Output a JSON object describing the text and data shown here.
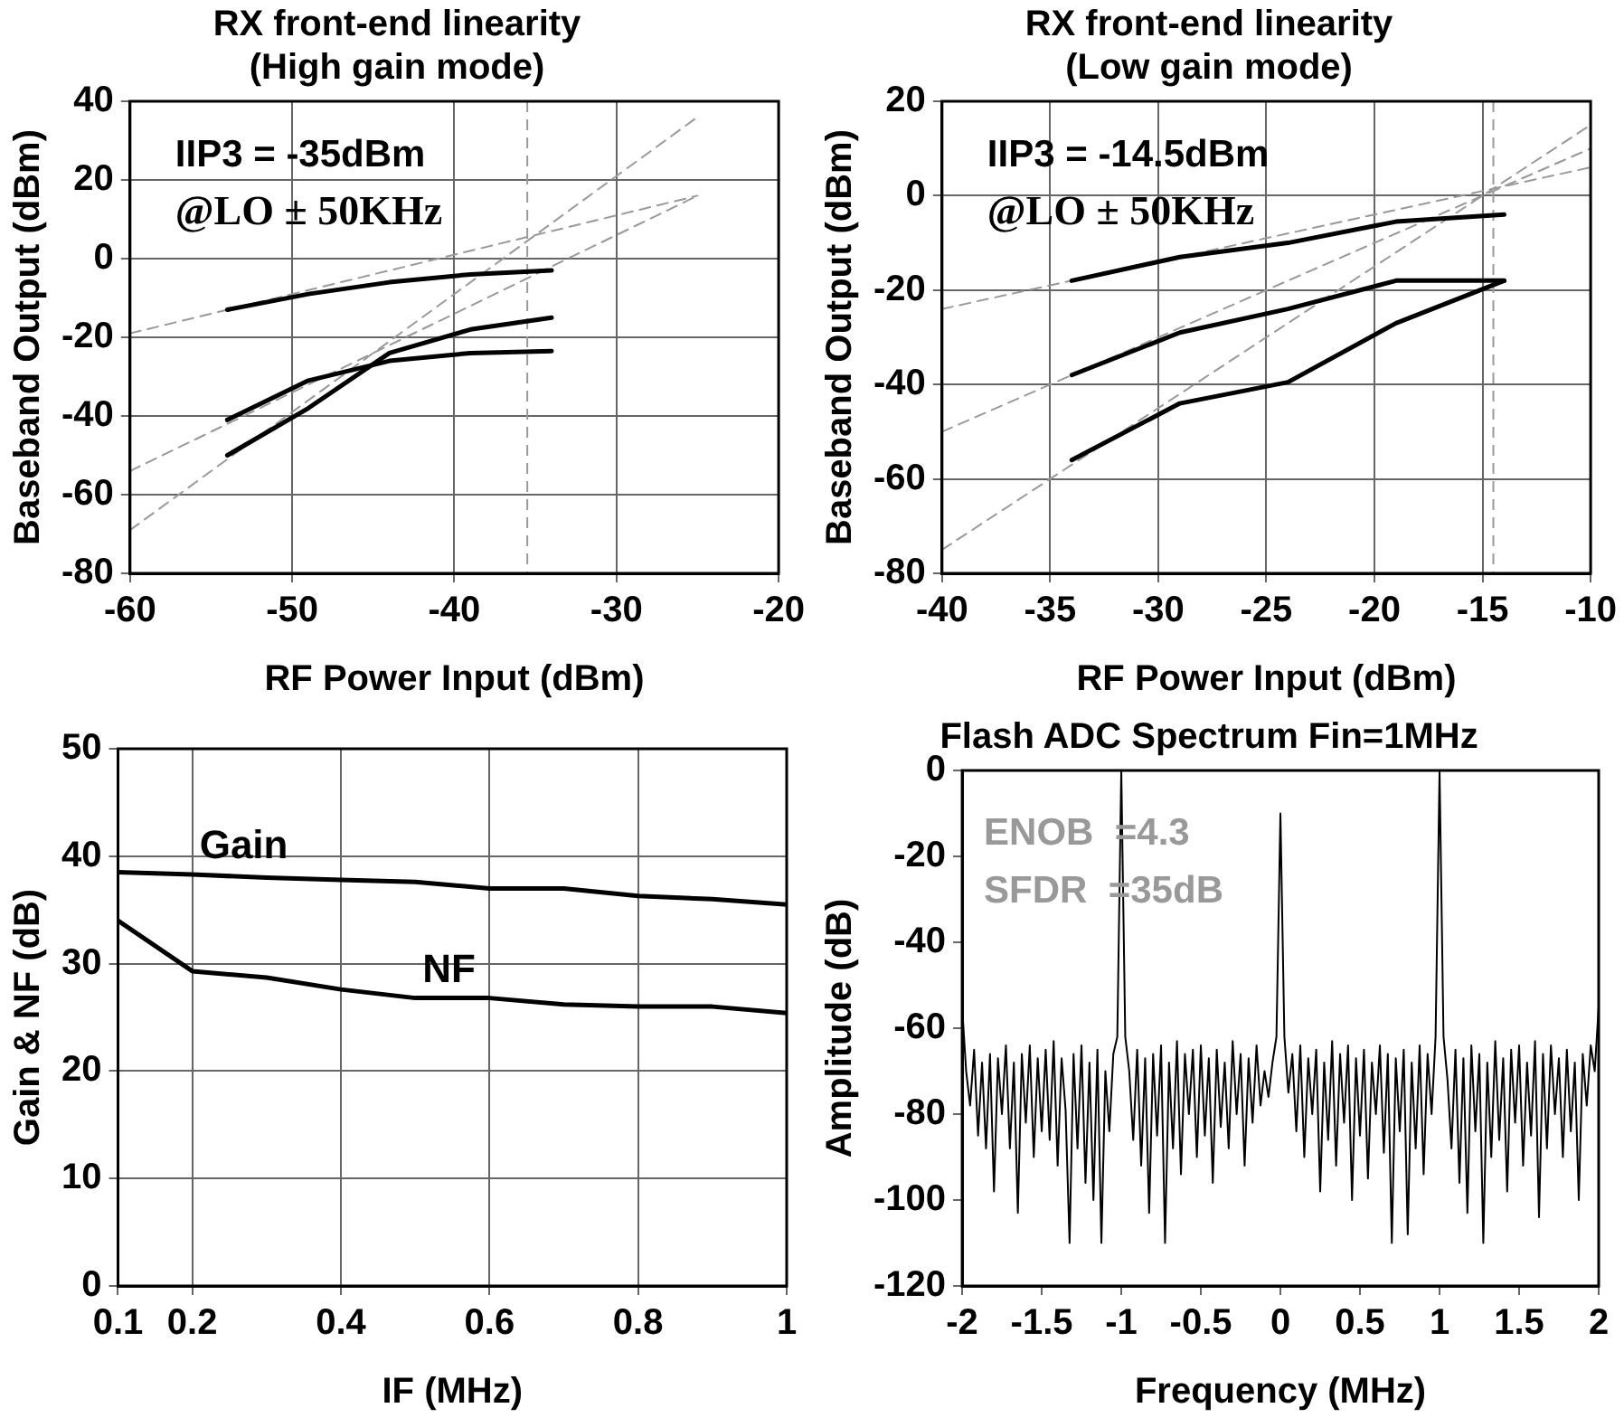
{
  "chart_data": [
    {
      "type": "line",
      "title": "RX front-end linearity\n(High gain mode)",
      "xlabel": "RF Power Input (dBm)",
      "ylabel": "Baseband Output (dBm)",
      "xlim": [
        -60,
        -20
      ],
      "xticks": [
        -60,
        -50,
        -40,
        -30,
        -20
      ],
      "ylim": [
        -80,
        40
      ],
      "yticks": [
        -80,
        -60,
        -40,
        -20,
        0,
        20,
        40
      ],
      "grid": true,
      "legend": false,
      "marker": "none",
      "annotations": [
        "IIP3 = -35dBm",
        "@LO ± 50KHz"
      ],
      "ref_lines": [
        {
          "axis": "x",
          "value": -35.5,
          "color": "#999999",
          "line_style": "dashed"
        }
      ],
      "series": [
        {
          "color": "#000000",
          "x": [
            -54,
            -49,
            -44,
            -39,
            -34
          ],
          "values": [
            -13,
            -9,
            -6,
            -4,
            -3
          ]
        },
        {
          "color": "#000000",
          "x": [
            -54,
            -49,
            -44,
            -39,
            -34
          ],
          "values": [
            -41,
            -31,
            -26,
            -24,
            -23.5
          ]
        },
        {
          "color": "#000000",
          "x": [
            -54,
            -49,
            -44,
            -39,
            -34
          ],
          "values": [
            -50,
            -38,
            -24,
            -18,
            -15
          ]
        },
        {
          "color": "#999999",
          "line_style": "dashed",
          "x": [
            -60,
            -25
          ],
          "values": [
            -19,
            16
          ]
        },
        {
          "color": "#999999",
          "line_style": "dashed",
          "x": [
            -60,
            -25
          ],
          "values": [
            -54,
            16
          ]
        },
        {
          "color": "#999999",
          "line_style": "dashed",
          "x": [
            -60,
            -25
          ],
          "values": [
            -69,
            36
          ]
        }
      ]
    },
    {
      "type": "line",
      "title": "RX front-end linearity\n(Low gain mode)",
      "xlabel": "RF Power Input (dBm)",
      "ylabel": "Baseband Output (dBm)",
      "xlim": [
        -40,
        -10
      ],
      "xticks": [
        -40,
        -35,
        -30,
        -25,
        -20,
        -15,
        -10
      ],
      "ylim": [
        -80,
        20
      ],
      "yticks": [
        -80,
        -60,
        -40,
        -20,
        0,
        20
      ],
      "grid": true,
      "legend": false,
      "marker": "none",
      "annotations": [
        "IIP3 = -14.5dBm",
        "@LO ± 50KHz"
      ],
      "ref_lines": [
        {
          "axis": "x",
          "value": -14.5,
          "color": "#999999",
          "line_style": "dashed"
        }
      ],
      "series": [
        {
          "color": "#000000",
          "x": [
            -34,
            -29,
            -24,
            -19,
            -14
          ],
          "values": [
            -18,
            -13,
            -10,
            -5.5,
            -4
          ]
        },
        {
          "color": "#000000",
          "x": [
            -34,
            -29,
            -24,
            -19,
            -14
          ],
          "values": [
            -38,
            -29,
            -24,
            -18,
            -18
          ]
        },
        {
          "color": "#000000",
          "x": [
            -34,
            -29,
            -24,
            -19,
            -14
          ],
          "values": [
            -56,
            -44,
            -39.5,
            -27,
            -18
          ]
        },
        {
          "color": "#999999",
          "line_style": "dashed",
          "x": [
            -40,
            -10
          ],
          "values": [
            -24,
            6
          ]
        },
        {
          "color": "#999999",
          "line_style": "dashed",
          "x": [
            -40,
            -10
          ],
          "values": [
            -50,
            10
          ]
        },
        {
          "color": "#999999",
          "line_style": "dashed",
          "x": [
            -40,
            -10
          ],
          "values": [
            -75,
            15
          ]
        }
      ]
    },
    {
      "type": "line",
      "xlabel": "IF (MHz)",
      "ylabel": "Gain & NF (dB)",
      "xlim": [
        0.1,
        1
      ],
      "xticks": [
        0.1,
        0.2,
        0.4,
        0.6,
        0.8,
        1
      ],
      "ylim": [
        0,
        50
      ],
      "yticks": [
        0,
        10,
        20,
        30,
        40,
        50
      ],
      "grid": true,
      "legend": false,
      "marker": "none",
      "x": [
        0.1,
        0.2,
        0.3,
        0.4,
        0.5,
        0.6,
        0.7,
        0.8,
        0.9,
        1
      ],
      "series": [
        {
          "name": "Gain",
          "color": "#000000",
          "values": [
            38.5,
            38.3,
            38,
            37.8,
            37.6,
            37,
            37,
            36.3,
            36,
            35.5
          ]
        },
        {
          "name": "NF",
          "color": "#000000",
          "values": [
            34,
            29.3,
            28.7,
            27.6,
            26.8,
            26.8,
            26.2,
            26,
            26,
            25.4
          ]
        }
      ]
    },
    {
      "type": "line",
      "title": "Flash ADC Spectrum Fin=1MHz",
      "xlabel": "Frequency (MHz)",
      "ylabel": "Amplitude (dB)",
      "xlim": [
        -2,
        2
      ],
      "xticks": [
        -2,
        -1.5,
        -1,
        -0.5,
        0,
        0.5,
        1,
        1.5,
        2
      ],
      "ylim": [
        -120,
        0
      ],
      "yticks": [
        -120,
        -100,
        -80,
        -60,
        -40,
        -20,
        0
      ],
      "grid": false,
      "legend": false,
      "marker": "none",
      "annotations": [
        "ENOB  =4.3",
        "SFDR  =35dB"
      ],
      "x": [
        -2,
        -1.975,
        -1.95,
        -1.925,
        -1.9,
        -1.875,
        -1.85,
        -1.825,
        -1.8,
        -1.775,
        -1.75,
        -1.725,
        -1.7,
        -1.675,
        -1.65,
        -1.625,
        -1.6,
        -1.575,
        -1.55,
        -1.525,
        -1.5,
        -1.475,
        -1.45,
        -1.425,
        -1.4,
        -1.375,
        -1.35,
        -1.325,
        -1.3,
        -1.275,
        -1.25,
        -1.225,
        -1.2,
        -1.175,
        -1.15,
        -1.125,
        -1.1,
        -1.075,
        -1.05,
        -1.025,
        -1,
        -0.975,
        -0.95,
        -0.925,
        -0.9,
        -0.875,
        -0.85,
        -0.825,
        -0.8,
        -0.775,
        -0.75,
        -0.725,
        -0.7,
        -0.675,
        -0.65,
        -0.625,
        -0.6,
        -0.575,
        -0.55,
        -0.525,
        -0.5,
        -0.475,
        -0.45,
        -0.425,
        -0.4,
        -0.375,
        -0.35,
        -0.325,
        -0.3,
        -0.275,
        -0.25,
        -0.225,
        -0.2,
        -0.175,
        -0.15,
        -0.125,
        -0.1,
        -0.075,
        -0.05,
        -0.025,
        0,
        0.025,
        0.05,
        0.075,
        0.1,
        0.125,
        0.15,
        0.175,
        0.2,
        0.225,
        0.25,
        0.275,
        0.3,
        0.325,
        0.35,
        0.375,
        0.4,
        0.425,
        0.45,
        0.475,
        0.5,
        0.525,
        0.55,
        0.575,
        0.6,
        0.625,
        0.65,
        0.675,
        0.7,
        0.725,
        0.75,
        0.775,
        0.8,
        0.825,
        0.85,
        0.875,
        0.9,
        0.925,
        0.95,
        0.975,
        1,
        1.025,
        1.05,
        1.075,
        1.1,
        1.125,
        1.15,
        1.175,
        1.2,
        1.225,
        1.25,
        1.275,
        1.3,
        1.325,
        1.35,
        1.375,
        1.4,
        1.425,
        1.45,
        1.475,
        1.5,
        1.525,
        1.55,
        1.575,
        1.6,
        1.625,
        1.65,
        1.675,
        1.7,
        1.725,
        1.75,
        1.775,
        1.8,
        1.825,
        1.85,
        1.875,
        1.9,
        1.925,
        1.95,
        1.975,
        2
      ],
      "series": [
        {
          "color": "#000000",
          "values": [
            -55,
            -70,
            -78,
            -65,
            -85,
            -68,
            -88,
            -66,
            -98,
            -67,
            -80,
            -64,
            -88,
            -68,
            -103,
            -66,
            -82,
            -64,
            -90,
            -67,
            -84,
            -65,
            -86,
            -63,
            -92,
            -67,
            -79,
            -110,
            -66,
            -88,
            -64,
            -96,
            -68,
            -100,
            -65,
            -110,
            -70,
            -84,
            -66,
            -62,
            0,
            -62,
            -70,
            -86,
            -65,
            -92,
            -67,
            -103,
            -66,
            -85,
            -64,
            -110,
            -68,
            -88,
            -63,
            -94,
            -66,
            -80,
            -65,
            -90,
            -64,
            -85,
            -67,
            -96,
            -65,
            -83,
            -68,
            -88,
            -63,
            -80,
            -66,
            -92,
            -67,
            -82,
            -64,
            -78,
            -70,
            -76,
            -68,
            -62,
            -10,
            -62,
            -75,
            -66,
            -84,
            -64,
            -90,
            -67,
            -80,
            -65,
            -98,
            -68,
            -86,
            -63,
            -92,
            -66,
            -82,
            -64,
            -100,
            -67,
            -85,
            -65,
            -95,
            -68,
            -80,
            -64,
            -89,
            -66,
            -110,
            -67,
            -84,
            -65,
            -108,
            -68,
            -88,
            -64,
            -94,
            -66,
            -80,
            -62,
            0,
            -62,
            -72,
            -88,
            -65,
            -96,
            -67,
            -103,
            -64,
            -84,
            -66,
            -110,
            -68,
            -90,
            -63,
            -86,
            -67,
            -98,
            -65,
            -82,
            -64,
            -92,
            -68,
            -85,
            -63,
            -104,
            -66,
            -88,
            -64,
            -80,
            -67,
            -90,
            -65,
            -84,
            -68,
            -100,
            -66,
            -78,
            -64,
            -70,
            -55
          ]
        }
      ]
    }
  ]
}
